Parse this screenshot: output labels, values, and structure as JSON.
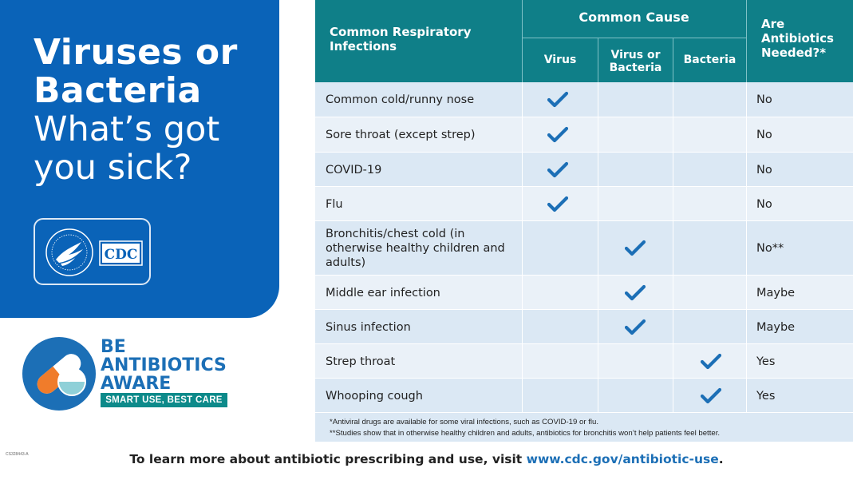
{
  "headline": {
    "line1": "Viruses or",
    "line2": "Bacteria",
    "line3": "What’s got",
    "line4": "you sick?"
  },
  "logos": {
    "cdc_text": "CDC",
    "hhs_icon": "hhs-seal-icon"
  },
  "campaign": {
    "line1": "BE",
    "line2": "ANTIBIOTICS",
    "line3": "AWARE",
    "tagline": "SMART USE, BEST CARE"
  },
  "code": "CS328443-A",
  "table": {
    "headers": {
      "infection": "Common Respiratory Infections",
      "cause": "Common Cause",
      "virus": "Virus",
      "virus_or_bacteria_1": "Virus or",
      "virus_or_bacteria_2": "Bacteria",
      "bacteria": "Bacteria",
      "needed_1": "Are",
      "needed_2": "Antibiotics",
      "needed_3": "Needed?*"
    },
    "rows": [
      {
        "name": "Common cold/runny nose",
        "cause": "virus",
        "needed": "No"
      },
      {
        "name": "Sore throat (except strep)",
        "cause": "virus",
        "needed": "No"
      },
      {
        "name": "COVID-19",
        "cause": "virus",
        "needed": "No"
      },
      {
        "name": "Flu",
        "cause": "virus",
        "needed": "No"
      },
      {
        "name": "Bronchitis/chest cold (in otherwise healthy children and adults)",
        "cause": "virus-or-bacteria",
        "needed": "No**"
      },
      {
        "name": "Middle ear infection",
        "cause": "virus-or-bacteria",
        "needed": "Maybe"
      },
      {
        "name": "Sinus infection",
        "cause": "virus-or-bacteria",
        "needed": "Maybe"
      },
      {
        "name": "Strep throat",
        "cause": "bacteria",
        "needed": "Yes"
      },
      {
        "name": "Whooping cough",
        "cause": "bacteria",
        "needed": "Yes"
      }
    ],
    "footnote1": "*Antiviral drugs are available for some viral infections, such as COVID-19 or flu.",
    "footnote2": "**Studies show that in otherwise healthy children and adults, antibiotics for bronchitis won’t help patients feel better."
  },
  "footer": {
    "text": "To learn more about antibiotic prescribing and use, visit ",
    "url": "www.cdc.gov/antibiotic-use",
    "end": "."
  },
  "colors": {
    "blue": "#0a63b8",
    "teal": "#0f7f88",
    "check": "#1c6fb6",
    "orange": "#f07c2b"
  }
}
